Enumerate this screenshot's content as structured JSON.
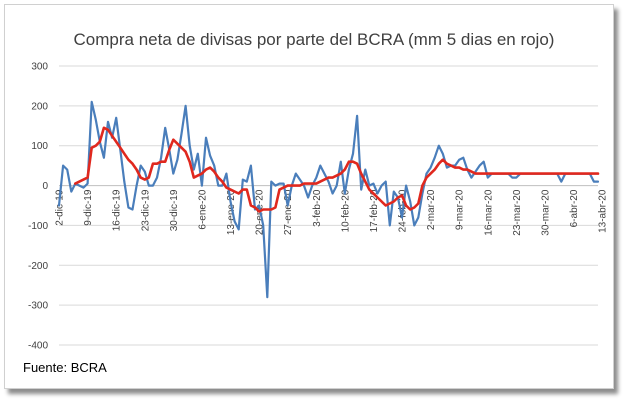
{
  "source": "Fuente: BCRA",
  "chart_data": {
    "type": "line",
    "title": "Compra neta de divisas por parte del BCRA (mm 5 dias en rojo)",
    "xlabel": "",
    "ylabel": "",
    "ylim": [
      -400,
      300
    ],
    "yticks": [
      300,
      200,
      100,
      0,
      -100,
      -200,
      -300,
      -400
    ],
    "grid": true,
    "legend": "none",
    "x_tick_labels": [
      "2-dic-19",
      "9-dic-19",
      "16-dic-19",
      "23-dic-19",
      "30-dic-19",
      "6-ene-20",
      "13-ene-20",
      "20-ene-20",
      "27-ene-20",
      "3-feb-20",
      "10-feb-20",
      "17-feb-20",
      "24-feb-20",
      "2-mar-20",
      "9-mar-20",
      "16-mar-20",
      "23-mar-20",
      "30-mar-20",
      "6-abr-20",
      "13-abr-20"
    ],
    "x": [
      0,
      1,
      2,
      3,
      4,
      5,
      6,
      7,
      8,
      9,
      10,
      11,
      12,
      13,
      14,
      15,
      16,
      17,
      18,
      19,
      20,
      21,
      22,
      23,
      24,
      25,
      26,
      27,
      28,
      29,
      30,
      31,
      32,
      33,
      34,
      35,
      36,
      37,
      38,
      39,
      40,
      41,
      42,
      43,
      44,
      45,
      46,
      47,
      48,
      49,
      50,
      51,
      52,
      53,
      54,
      55,
      56,
      57,
      58,
      59,
      60,
      61,
      62,
      63,
      64,
      65,
      66,
      67,
      68,
      69,
      70,
      71,
      72,
      73,
      74,
      75,
      76,
      77,
      78,
      79,
      80,
      81,
      82,
      83,
      84,
      85,
      86,
      87,
      88,
      89,
      90,
      91,
      92,
      93,
      94,
      95,
      96,
      97,
      98,
      99,
      100,
      101,
      102,
      103,
      104,
      105,
      106,
      107,
      108,
      109,
      110,
      111,
      112,
      113,
      114,
      115,
      116,
      117,
      118,
      119,
      120,
      121,
      122,
      123,
      124,
      125,
      126,
      127,
      128,
      129,
      130,
      131,
      132
    ],
    "series": [
      {
        "color": "#4a7ebb",
        "values": [
          -50,
          50,
          40,
          -15,
          5,
          0,
          -5,
          5,
          210,
          165,
          110,
          70,
          160,
          120,
          170,
          90,
          10,
          -55,
          -60,
          0,
          50,
          35,
          0,
          0,
          20,
          70,
          145,
          90,
          30,
          65,
          130,
          200,
          100,
          40,
          80,
          0,
          120,
          75,
          50,
          0,
          0,
          30,
          -40,
          -90,
          -110,
          15,
          10,
          50,
          -60,
          -50,
          -100,
          -280,
          10,
          0,
          5,
          5,
          -50,
          0,
          30,
          15,
          0,
          -30,
          0,
          20,
          50,
          30,
          10,
          -20,
          0,
          60,
          -20,
          40,
          80,
          175,
          -10,
          40,
          0,
          5,
          -20,
          0,
          10,
          -100,
          -15,
          -30,
          -80,
          0,
          -40,
          -100,
          -80,
          -20,
          30,
          45,
          70,
          100,
          80,
          45,
          50,
          50,
          65,
          70,
          40,
          20,
          35,
          50,
          60,
          20,
          30,
          30,
          30,
          30,
          30,
          20,
          20,
          30,
          30,
          30,
          30,
          30,
          30,
          30,
          30,
          30,
          30,
          10,
          30,
          30,
          30,
          30,
          30,
          30,
          30,
          10,
          10
        ]
      },
      {
        "color": "#e0281e",
        "values": [
          null,
          null,
          null,
          null,
          5,
          10,
          15,
          20,
          95,
          100,
          110,
          145,
          140,
          125,
          110,
          95,
          80,
          65,
          55,
          40,
          20,
          15,
          20,
          55,
          55,
          60,
          60,
          90,
          115,
          105,
          95,
          85,
          60,
          20,
          25,
          30,
          40,
          45,
          35,
          20,
          10,
          -5,
          -10,
          -15,
          -20,
          -10,
          -10,
          -50,
          -55,
          -65,
          -60,
          -60,
          -60,
          -55,
          -10,
          -5,
          0,
          0,
          0,
          0,
          5,
          5,
          5,
          5,
          10,
          15,
          20,
          20,
          25,
          30,
          40,
          60,
          60,
          55,
          30,
          10,
          -10,
          -20,
          -30,
          -40,
          -50,
          -45,
          -40,
          -30,
          -25,
          -50,
          -60,
          -55,
          -45,
          0,
          20,
          30,
          40,
          55,
          65,
          55,
          50,
          45,
          45,
          40,
          40,
          35,
          30,
          30,
          30,
          30,
          30,
          30,
          30,
          30,
          30,
          30,
          30,
          30,
          30,
          30,
          30,
          30,
          30,
          30,
          30,
          30,
          30,
          30,
          30,
          30,
          30,
          30,
          30,
          30,
          30,
          30,
          30
        ]
      }
    ]
  }
}
